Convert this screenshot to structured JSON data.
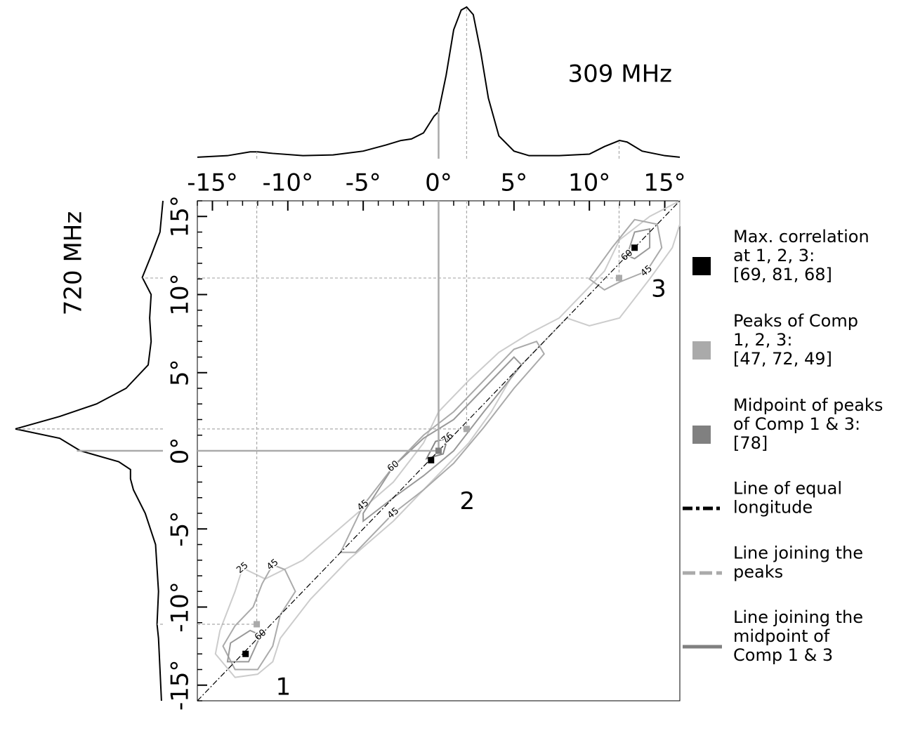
{
  "chart_data": {
    "type": "contour",
    "xlim": [
      -16,
      16
    ],
    "ylim": [
      -16,
      16
    ],
    "xticks": [
      {
        "value": -15,
        "label": "-15°"
      },
      {
        "value": -10,
        "label": "-10°"
      },
      {
        "value": -5,
        "label": "-5°"
      },
      {
        "value": 0,
        "label": "0°"
      },
      {
        "value": 5,
        "label": "5°"
      },
      {
        "value": 10,
        "label": "10°"
      },
      {
        "value": 15,
        "label": "15°"
      }
    ],
    "yticks": [
      {
        "value": -15,
        "label": "-15°"
      },
      {
        "value": -10,
        "label": "-10°"
      },
      {
        "value": -5,
        "label": "-5°"
      },
      {
        "value": 0,
        "label": "0°"
      },
      {
        "value": 5,
        "label": "5°"
      },
      {
        "value": 10,
        "label": "10°"
      },
      {
        "value": 15,
        "label": "15°"
      }
    ],
    "xminorticks": [
      -16,
      -14,
      -13,
      -12,
      -11,
      -9,
      -8,
      -7,
      -6,
      -4,
      -3,
      -2,
      -1,
      1,
      2,
      3,
      4,
      6,
      7,
      8,
      9,
      11,
      12,
      13,
      14,
      16
    ],
    "yminorticks": [
      -16,
      -14,
      -13,
      -12,
      -11,
      -9,
      -8,
      -7,
      -6,
      -4,
      -3,
      -2,
      -1,
      1,
      2,
      3,
      4,
      6,
      7,
      8,
      9,
      11,
      12,
      13,
      14,
      16
    ],
    "top_profile": {
      "title": "309 MHz",
      "x": [
        -16,
        -14,
        -12.5,
        -12,
        -11,
        -9,
        -7,
        -5,
        -3.5,
        -2.5,
        -1.8,
        -1,
        -0.3,
        0,
        0.5,
        1,
        1.5,
        1.86,
        2.3,
        2.8,
        3.3,
        4,
        5,
        6,
        8,
        10,
        11,
        12,
        12.5,
        13.5,
        15,
        16
      ],
      "values": [
        0.01,
        0.02,
        0.045,
        0.045,
        0.035,
        0.02,
        0.025,
        0.05,
        0.09,
        0.12,
        0.13,
        0.17,
        0.28,
        0.31,
        0.55,
        0.85,
        0.98,
        1.0,
        0.95,
        0.7,
        0.4,
        0.15,
        0.05,
        0.02,
        0.02,
        0.03,
        0.08,
        0.12,
        0.11,
        0.05,
        0.02,
        0.01
      ]
    },
    "left_profile": {
      "title": "720 MHz",
      "y": [
        16,
        14,
        12.5,
        11.1,
        10,
        8.5,
        7,
        5.5,
        4,
        3,
        2.2,
        1.4,
        0.8,
        0,
        -0.7,
        -1.2,
        -1.8,
        -2.5,
        -4,
        -6,
        -9,
        -11.1,
        -12,
        -14,
        -16
      ],
      "values": [
        0.0,
        0.02,
        0.08,
        0.14,
        0.08,
        0.09,
        0.08,
        0.1,
        0.25,
        0.45,
        0.7,
        1.0,
        0.7,
        0.56,
        0.3,
        0.22,
        0.22,
        0.2,
        0.12,
        0.05,
        0.03,
        0.04,
        0.03,
        0.02,
        0.01
      ]
    },
    "contours": [
      {
        "level": 25,
        "color": "#cccccc",
        "x": [
          -13.5,
          -14.8,
          -14.5,
          -13.5,
          -13,
          -11.5,
          -9,
          -6,
          -3,
          -1,
          0,
          2,
          4,
          6,
          8,
          9.5,
          11,
          12,
          14,
          16,
          16,
          15.5,
          14,
          12,
          10,
          8.5,
          7,
          5,
          3.5,
          2,
          0,
          -3,
          -6,
          -8.5,
          -10.5,
          -11,
          -12
        ],
        "y": [
          -14.5,
          -13,
          -11.5,
          -9,
          -7.5,
          -8.2,
          -7,
          -4.5,
          -2,
          0.5,
          2.5,
          4.5,
          6.3,
          7.5,
          8.5,
          10,
          11.5,
          13.5,
          15,
          16,
          14.5,
          13,
          11,
          8.5,
          8,
          8.5,
          7,
          5,
          2.5,
          0.5,
          -1.5,
          -4.5,
          -7,
          -9.5,
          -12,
          -13.5,
          -14.3
        ]
      },
      {
        "level": 45,
        "color": "#aaaaaa",
        "x": [
          -13.5,
          -14.3,
          -13.5,
          -12.3,
          -11.7,
          -11,
          -10.2,
          -9.5,
          -10.5,
          -11,
          -12
        ],
        "y": [
          -14,
          -12.5,
          -11.2,
          -10,
          -8.5,
          -7.3,
          -7.6,
          -9,
          -10.5,
          -12.5,
          -14
        ]
      },
      {
        "level": 45,
        "color": "#aaaaaa",
        "x": [
          -6.5,
          -5,
          -3,
          -1,
          1,
          3,
          5,
          6.5,
          7,
          5,
          3,
          1,
          -1,
          -3,
          -5.5
        ],
        "y": [
          -6.5,
          -3.5,
          -1,
          1,
          2.5,
          4.5,
          6.5,
          7,
          6.2,
          4,
          1.5,
          -0.8,
          -2.5,
          -4,
          -6.5
        ]
      },
      {
        "level": 45,
        "color": "#aaaaaa",
        "x": [
          10,
          11.5,
          13,
          14.5,
          14.8,
          13.8,
          12,
          11
        ],
        "y": [
          11,
          13,
          14.8,
          14.5,
          13,
          11.5,
          10.8,
          10.3
        ]
      },
      {
        "level": 60,
        "color": "#999999",
        "x": [
          -5,
          -3,
          -1,
          1,
          3,
          5,
          5.5,
          3,
          1,
          -1,
          -3,
          -5
        ],
        "y": [
          -4,
          -1,
          0.8,
          2,
          4,
          6,
          5.5,
          2.5,
          0,
          -1.6,
          -3,
          -4.5
        ]
      },
      {
        "level": 60,
        "color": "#999999",
        "x": [
          -14,
          -13.8,
          -12.5,
          -11.8,
          -12.6
        ],
        "y": [
          -13.5,
          -12.3,
          -11.5,
          -11.8,
          -13.5
        ]
      },
      {
        "level": 60,
        "color": "#999999",
        "x": [
          12.5,
          13,
          14,
          14,
          13
        ],
        "y": [
          12.5,
          14,
          14.2,
          13,
          12.3
        ]
      },
      {
        "level": 76,
        "color": "#888888",
        "x": [
          -0.8,
          -0.2,
          0.6,
          0.3
        ],
        "y": [
          -0.5,
          0.6,
          0.8,
          -0.2
        ]
      }
    ],
    "max_correlation": {
      "x": [
        -12.8,
        -0.5,
        13.0
      ],
      "y": [
        -13.0,
        -0.6,
        13.0
      ],
      "values": [
        69,
        81,
        68
      ],
      "color": "#000000"
    },
    "peaks": {
      "x": [
        -12.06,
        1.86,
        11.97
      ],
      "y": [
        -11.1,
        1.4,
        11.06
      ],
      "values": [
        47,
        72,
        49
      ],
      "color": "#aaaaaa"
    },
    "midpoint": {
      "x": 0,
      "y": 0,
      "value": 78,
      "color": "#808080"
    },
    "region_labels": [
      "1",
      "2",
      "3"
    ],
    "legend": [
      {
        "lines": [
          "Max. correlation",
          "at 1, 2, 3:",
          "[69, 81, 68]"
        ],
        "marker": "square",
        "color": "#000000"
      },
      {
        "lines": [
          "Peaks of Comp",
          "1, 2, 3:",
          " [47, 72, 49]"
        ],
        "marker": "square",
        "color": "#aaaaaa"
      },
      {
        "lines": [
          "Midpoint of peaks",
          "of Comp 1 & 3:",
          " [78]"
        ],
        "marker": "square",
        "color": "#808080"
      },
      {
        "lines": [
          "Line of equal",
          " longitude"
        ],
        "marker": "dashdot",
        "color": "#000000"
      },
      {
        "lines": [
          "Line joining the",
          "peaks"
        ],
        "marker": "dashed",
        "color": "#aaaaaa"
      },
      {
        "lines": [
          "Line joining the",
          "midpoint of",
          "Comp 1 & 3"
        ],
        "marker": "solid",
        "color": "#808080"
      }
    ]
  }
}
